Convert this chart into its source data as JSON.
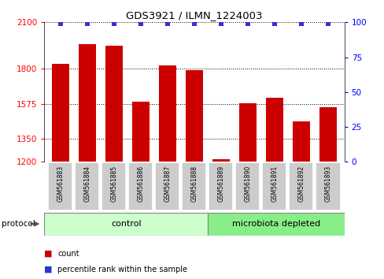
{
  "title": "GDS3921 / ILMN_1224003",
  "samples": [
    "GSM561883",
    "GSM561884",
    "GSM561885",
    "GSM561886",
    "GSM561887",
    "GSM561888",
    "GSM561889",
    "GSM561890",
    "GSM561891",
    "GSM561892",
    "GSM561893"
  ],
  "counts": [
    1830,
    1960,
    1950,
    1590,
    1820,
    1790,
    1215,
    1580,
    1615,
    1460,
    1555
  ],
  "ylim_left": [
    1200,
    2100
  ],
  "ylim_right": [
    0,
    100
  ],
  "yticks_left": [
    1200,
    1350,
    1575,
    1800,
    2100
  ],
  "yticks_right": [
    0,
    25,
    50,
    75,
    100
  ],
  "bar_color": "#cc0000",
  "percentile_color": "#3333cc",
  "bar_width": 0.65,
  "bg_color": "#ffffff",
  "control_color": "#ccffcc",
  "microbiota_color": "#88ee88",
  "legend_count_label": "count",
  "legend_percentile_label": "percentile rank within the sample",
  "protocol_label": "protocol",
  "n_control": 6,
  "n_micro": 5
}
